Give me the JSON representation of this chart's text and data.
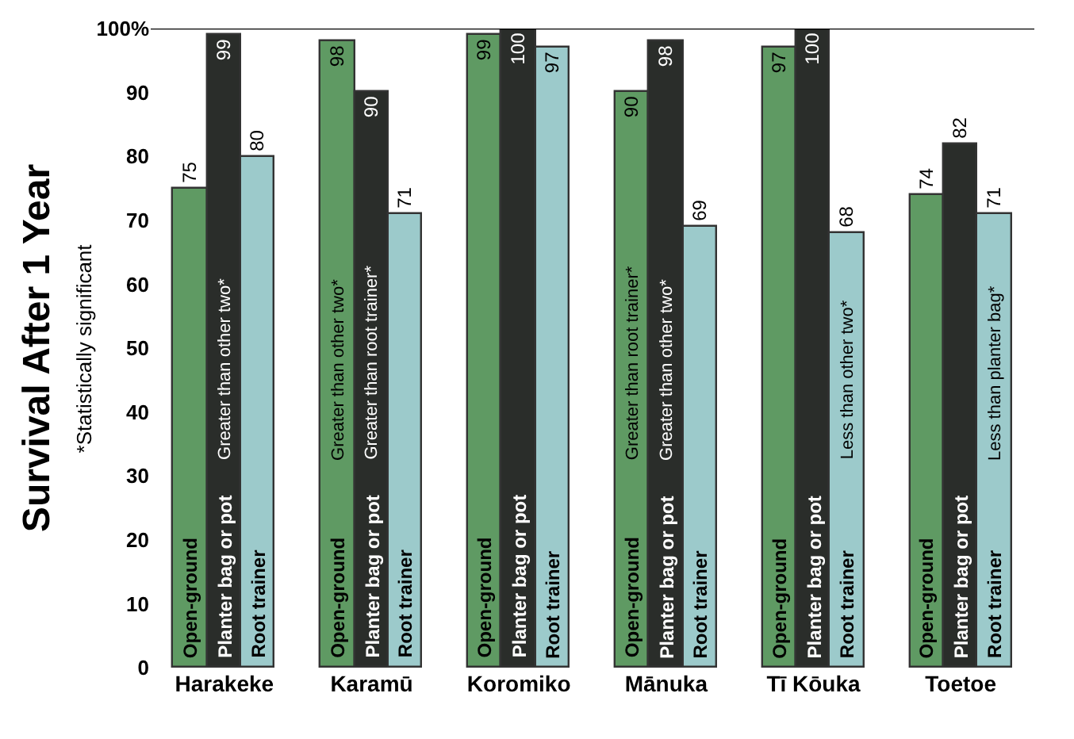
{
  "chart_data": {
    "type": "bar",
    "ylabel": "Survival After 1 Year",
    "categories": [
      "Harakeke",
      "Karamū",
      "Koromiko",
      "Mānuka",
      "Tī Kōuka",
      "Toetoe"
    ],
    "series": [
      {
        "name": "Open-ground",
        "color": "#5f9a63",
        "values": [
          75,
          98,
          99,
          90,
          97,
          74
        ]
      },
      {
        "name": "Planter bag or pot",
        "color": "#2a2d2a",
        "values": [
          99,
          90,
          100,
          98,
          100,
          82
        ]
      },
      {
        "name": "Root trainer",
        "color": "#9ccacb",
        "values": [
          80,
          71,
          97,
          69,
          68,
          71
        ]
      }
    ],
    "ylim": [
      0,
      100
    ],
    "yticks": [
      0,
      10,
      20,
      30,
      40,
      50,
      60,
      70,
      80,
      90,
      {
        "value": 100,
        "label": "100%"
      }
    ],
    "ref_lines": [
      {
        "axis": "y",
        "value": 100,
        "color": "#000000"
      }
    ],
    "data_labels": true,
    "legend": false,
    "annotations": [
      "*Statistically significant",
      "Greater than other two*",
      "Greater than other two*",
      "Greater than root trainer*",
      "Greater than root trainer*",
      "Greater than other two*",
      "Less than other two*",
      "Less than planter bag*"
    ]
  }
}
